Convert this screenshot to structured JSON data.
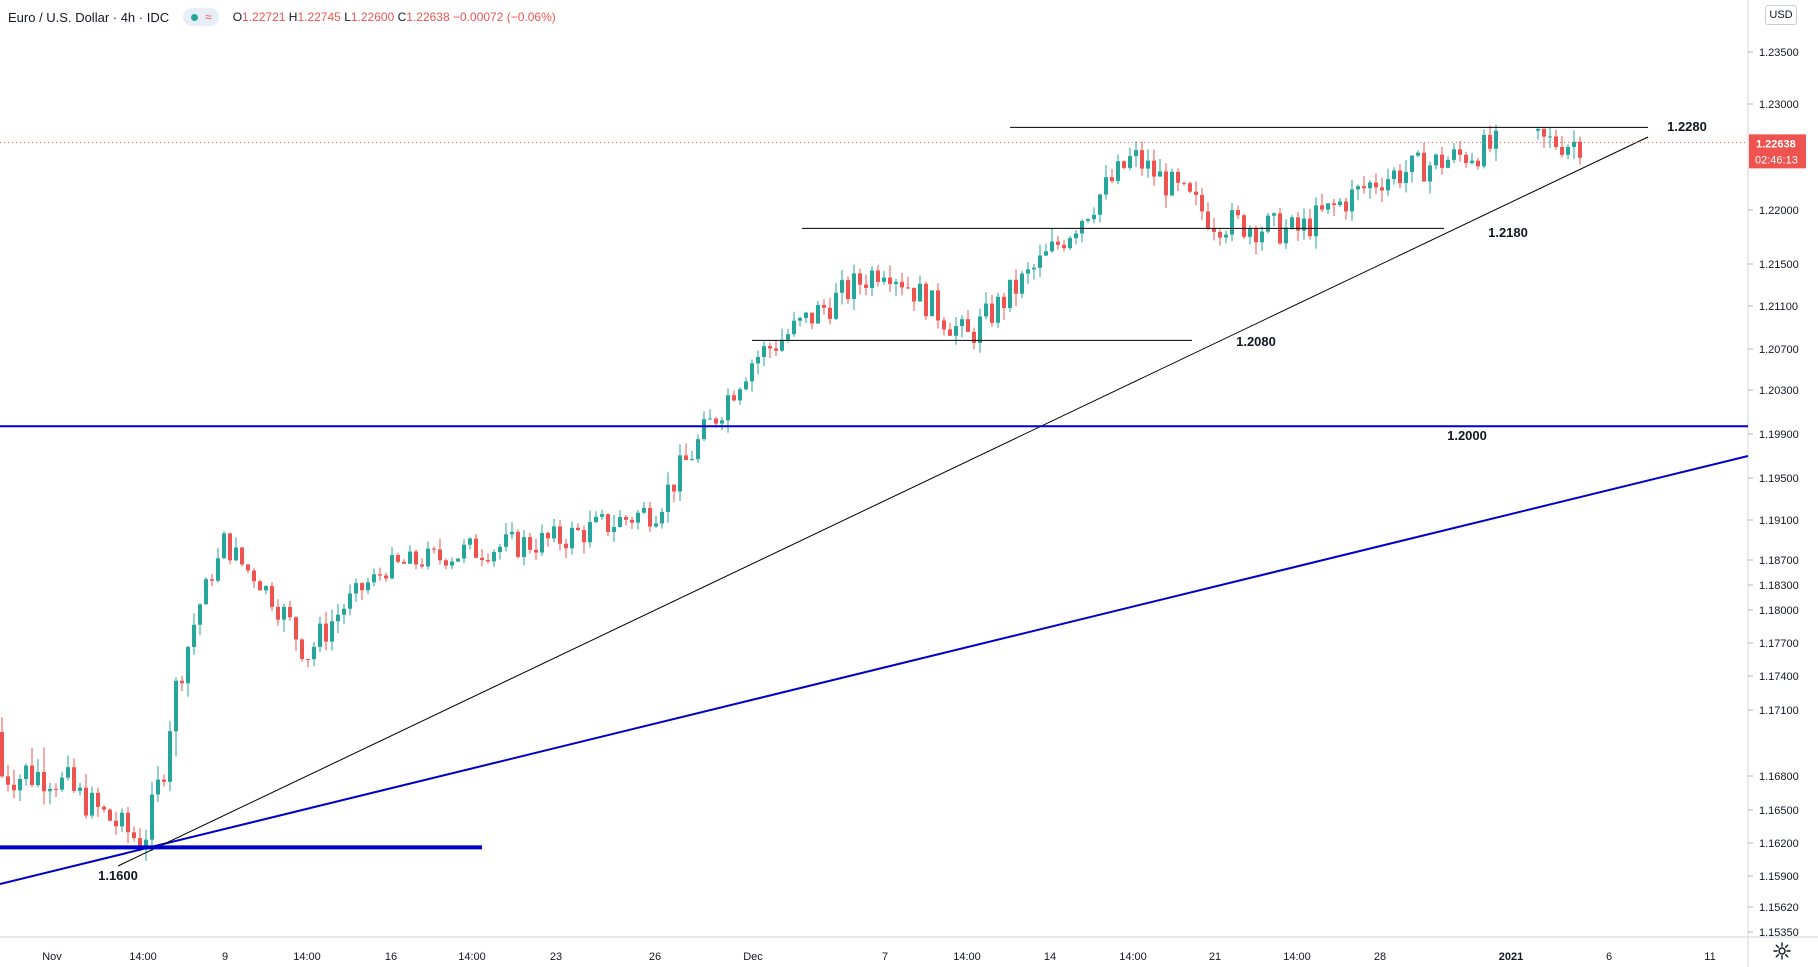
{
  "legend": {
    "symbol": "Euro / U.S. Dollar · 4h · IDC",
    "open_label": "O",
    "open": "1.22721",
    "high_label": "H",
    "high": "1.22745",
    "low_label": "L",
    "low": "1.22600",
    "close_label": "C",
    "close": "1.22638",
    "change": "−0.00072 (−0.06%)"
  },
  "currency": "USD",
  "price_badge": {
    "price": "1.22638",
    "countdown": "02:46:13"
  },
  "colors": {
    "up": "#26a69a",
    "down": "#ef5350",
    "support": "#0000cc",
    "trend": "#000000",
    "grid_text": "#131722"
  },
  "chart_data": {
    "type": "candlestick",
    "symbol": "EURUSD",
    "timeframe": "4h",
    "y_ticks": [
      "1.23500",
      "1.23000",
      "1.22000",
      "1.21500",
      "1.21100",
      "1.20700",
      "1.20300",
      "1.19900",
      "1.19500",
      "1.19100",
      "1.18700",
      "1.18300",
      "1.18000",
      "1.17700",
      "1.17400",
      "1.17100",
      "1.16800",
      "1.16500",
      "1.16200",
      "1.15900",
      "1.15620",
      "1.15350"
    ],
    "x_ticks": [
      "Nov",
      "14:00",
      "9",
      "14:00",
      "16",
      "14:00",
      "23",
      "26",
      "Dec",
      "7",
      "14:00",
      "14",
      "14:00",
      "21",
      "14:00",
      "28",
      "2021",
      "6",
      "11"
    ],
    "horizontal_levels": [
      {
        "label": "1.1600",
        "value": 1.1616,
        "style": "thick-blue"
      },
      {
        "label": "1.2000",
        "value": 1.1997,
        "style": "blue"
      },
      {
        "label": "1.2080",
        "value": 1.2078,
        "style": "black"
      },
      {
        "label": "1.2180",
        "value": 1.2183,
        "style": "black"
      },
      {
        "label": "1.2280",
        "value": 1.2278,
        "style": "black"
      }
    ],
    "last_price": 1.22638,
    "series": [
      {
        "name": "",
        "x": [
          "Nov",
          "14:00",
          "9",
          "14:00",
          "16",
          "14:00",
          "23",
          "26",
          "Dec",
          "7",
          "14:00",
          "14",
          "14:00",
          "21",
          "14:00",
          "28",
          "2021"
        ],
        "y": [
          1.168,
          1.162,
          1.189,
          1.176,
          1.186,
          1.188,
          1.189,
          1.192,
          1.206,
          1.215,
          1.208,
          1.216,
          1.225,
          1.219,
          1.218,
          1.223,
          1.2264
        ]
      }
    ]
  }
}
